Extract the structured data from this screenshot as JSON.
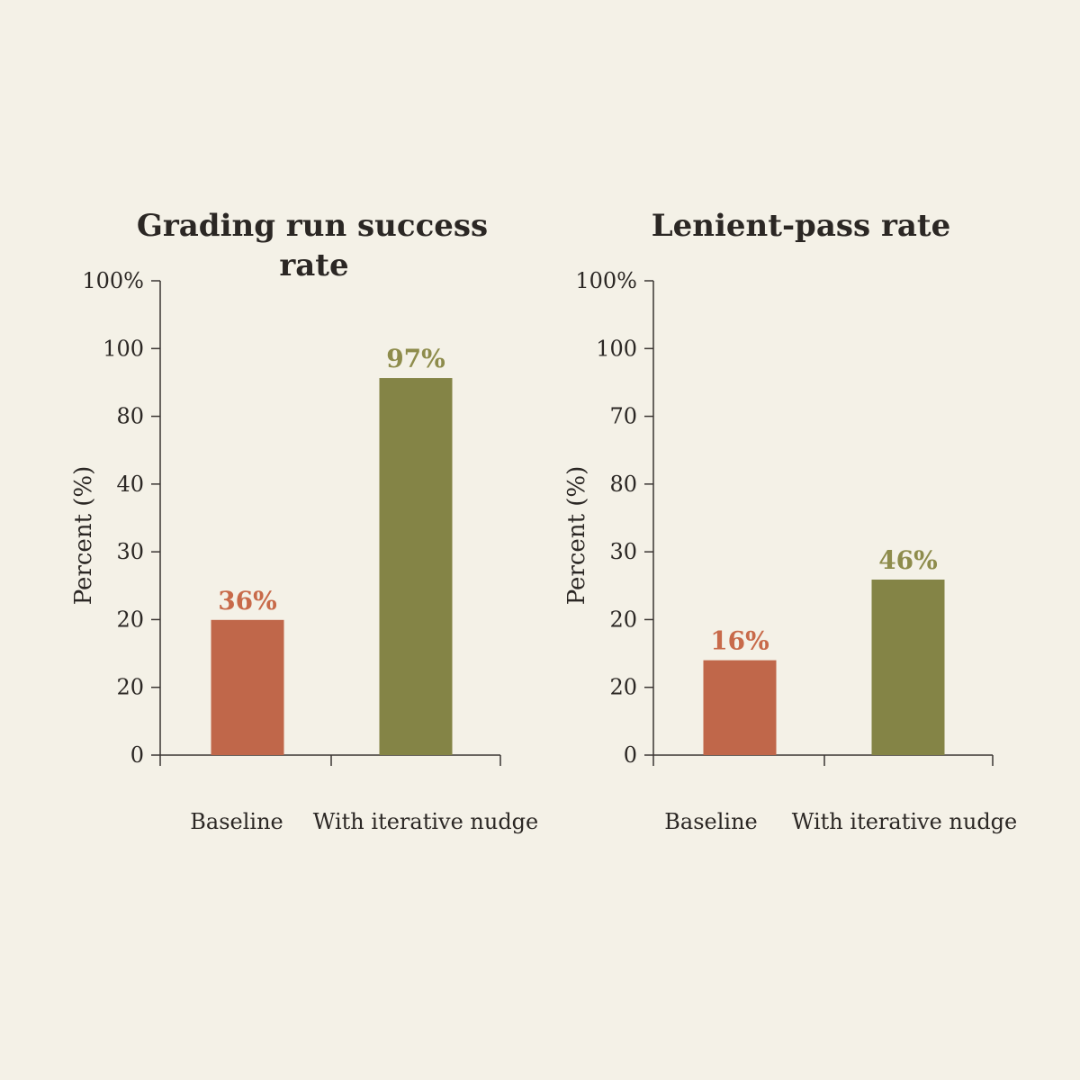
{
  "palette": {
    "background": "#f4f1e7",
    "baseline": "#c0674a",
    "nudge": "#848446",
    "baseline_label": "#c86a4a",
    "nudge_label": "#8e8c4c"
  },
  "chart_data": [
    {
      "type": "bar",
      "title_lines": [
        "Grading run success",
        "rate"
      ],
      "ylabel": "Percent (%)",
      "categories": [
        "Baseline",
        "With iterative nudge"
      ],
      "values": [
        36,
        97
      ],
      "data_labels": [
        "36%",
        "97%"
      ],
      "yticks": [
        "0",
        "20",
        "20",
        "30",
        "40",
        "80",
        "100",
        "100%"
      ],
      "bar_positions": [
        0.285,
        0.795
      ],
      "grid": false,
      "legend": "none"
    },
    {
      "type": "bar",
      "title_lines": [
        "Lenient-pass rate"
      ],
      "ylabel": "Percent (%)",
      "categories": [
        "Baseline",
        "With iterative nudge"
      ],
      "values": [
        16,
        46
      ],
      "data_labels": [
        "16%",
        "46%"
      ],
      "yticks": [
        "0",
        "20",
        "20",
        "30",
        "80",
        "70",
        "100",
        "100%"
      ],
      "bar_positions": [
        0.2,
        0.37
      ],
      "grid": false,
      "legend": "none"
    }
  ]
}
